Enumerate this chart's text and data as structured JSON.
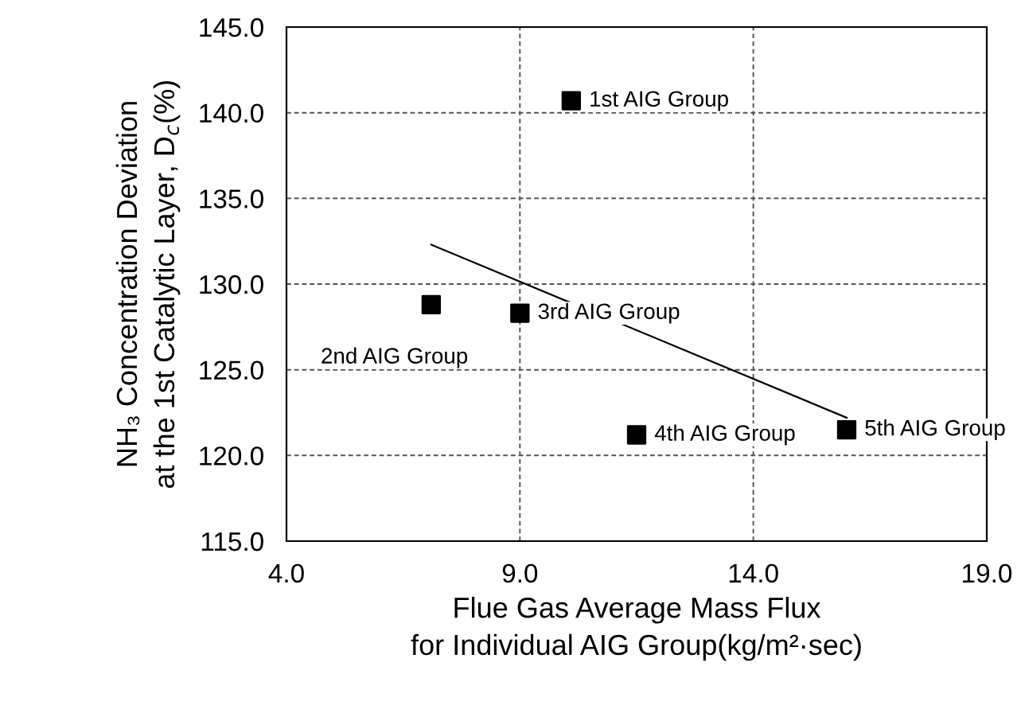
{
  "chart_data": {
    "type": "scatter",
    "xlabel": "Flue Gas Average Mass Flux\nfor Individual AIG Group(kg/m²·sec)",
    "ylabel": "NH₃ Concentration Deviation\nat the 1st Catalytic Layer, D$_{c}$(%)",
    "series": [
      {
        "color": "#000000",
        "marker": "square",
        "x": [
          10.1,
          7.1,
          9.0,
          11.5,
          16.0
        ],
        "values": [
          140.7,
          128.8,
          128.3,
          121.2,
          121.5
        ]
      },
      {
        "type": "line",
        "color": "#000000",
        "marker": "none",
        "line_style": "solid",
        "x": [
          7.1,
          16.0
        ],
        "values": [
          132.3,
          122.2
        ]
      }
    ],
    "annotations": [
      {
        "text": "1st AIG Group",
        "x": 10.1,
        "y": 140.7
      },
      {
        "text": "2nd AIG Group",
        "x": 7.1,
        "y": 128.8
      },
      {
        "text": "3rd AIG Group",
        "x": 9.0,
        "y": 128.3
      },
      {
        "text": "4th AIG Group",
        "x": 11.5,
        "y": 121.2
      },
      {
        "text": "5th AIG Group",
        "x": 16.0,
        "y": 121.5
      }
    ],
    "xlim": [
      4.0,
      19.0
    ],
    "xticks": [
      {
        "value": 4,
        "label": "4.0"
      },
      {
        "value": 9,
        "label": "9.0"
      },
      {
        "value": 14,
        "label": "14.0"
      },
      {
        "value": 19,
        "label": "19.0"
      }
    ],
    "ylim": [
      115.0,
      145.0
    ],
    "yticks": [
      {
        "value": 115,
        "label": "115.0"
      },
      {
        "value": 120,
        "label": "120.0"
      },
      {
        "value": 125,
        "label": "125.0"
      },
      {
        "value": 130,
        "label": "130.0"
      },
      {
        "value": 135,
        "label": "135.0"
      },
      {
        "value": 140,
        "label": "140.0"
      },
      {
        "value": 145,
        "label": "145.0"
      }
    ],
    "grid": true,
    "legend": false
  }
}
